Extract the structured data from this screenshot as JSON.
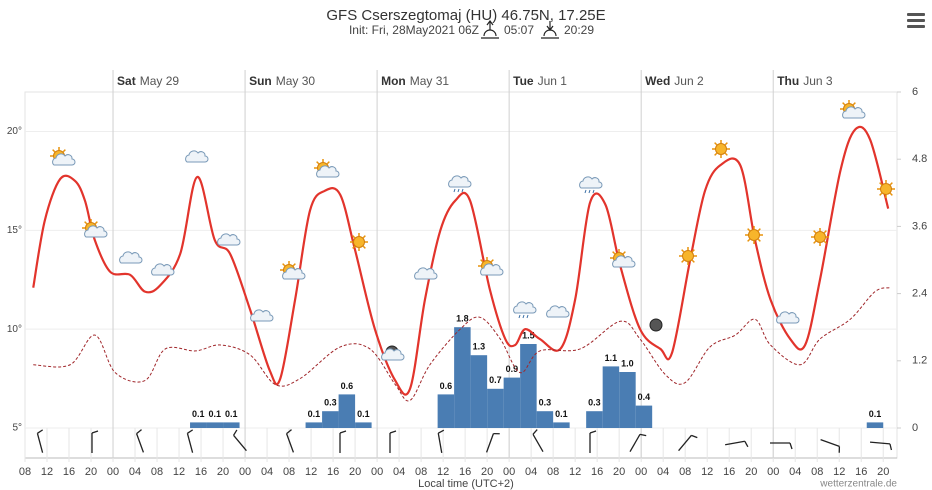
{
  "chart_data": {
    "type": "line",
    "title": "GFS Cserszegtomaj (HU) 46.75N, 17.25E",
    "subtitle": "Init: Fri, 28May2021 06Z",
    "sunrise": "05:07",
    "sunset": "20:29",
    "x_axis_label": "Local time (UTC+2)",
    "credit": "wetterzentrale.de",
    "xlim": [
      0,
      158.5
    ],
    "xticks": [
      {
        "value": 0,
        "label": "08"
      },
      {
        "value": 4,
        "label": "12"
      },
      {
        "value": 8,
        "label": "16"
      },
      {
        "value": 12,
        "label": "20"
      },
      {
        "value": 16,
        "label": "00"
      },
      {
        "value": 20,
        "label": "04"
      },
      {
        "value": 24,
        "label": "08"
      },
      {
        "value": 28,
        "label": "12"
      },
      {
        "value": 32,
        "label": "16"
      },
      {
        "value": 36,
        "label": "20"
      },
      {
        "value": 40,
        "label": "00"
      },
      {
        "value": 44,
        "label": "04"
      },
      {
        "value": 48,
        "label": "08"
      },
      {
        "value": 52,
        "label": "12"
      },
      {
        "value": 56,
        "label": "16"
      },
      {
        "value": 60,
        "label": "20"
      },
      {
        "value": 64,
        "label": "00"
      },
      {
        "value": 68,
        "label": "04"
      },
      {
        "value": 72,
        "label": "08"
      },
      {
        "value": 76,
        "label": "12"
      },
      {
        "value": 80,
        "label": "16"
      },
      {
        "value": 84,
        "label": "20"
      },
      {
        "value": 88,
        "label": "00"
      },
      {
        "value": 92,
        "label": "04"
      },
      {
        "value": 96,
        "label": "08"
      },
      {
        "value": 100,
        "label": "12"
      },
      {
        "value": 104,
        "label": "16"
      },
      {
        "value": 108,
        "label": "20"
      },
      {
        "value": 112,
        "label": "00"
      },
      {
        "value": 116,
        "label": "04"
      },
      {
        "value": 120,
        "label": "08"
      },
      {
        "value": 124,
        "label": "12"
      },
      {
        "value": 128,
        "label": "16"
      },
      {
        "value": 132,
        "label": "20"
      },
      {
        "value": 136,
        "label": "00"
      },
      {
        "value": 140,
        "label": "04"
      },
      {
        "value": 144,
        "label": "08"
      },
      {
        "value": 148,
        "label": "12"
      },
      {
        "value": 152,
        "label": "16"
      },
      {
        "value": 156,
        "label": "20"
      }
    ],
    "days": [
      {
        "day": "Sat",
        "date": "May 29",
        "x": 16
      },
      {
        "day": "Sun",
        "date": "May 30",
        "x": 40
      },
      {
        "day": "Mon",
        "date": "May 31",
        "x": 64
      },
      {
        "day": "Tue",
        "date": "Jun 1",
        "x": 88
      },
      {
        "day": "Wed",
        "date": "Jun 2",
        "x": 112
      },
      {
        "day": "Thu",
        "date": "Jun 3",
        "x": 136
      }
    ],
    "ylim": [
      5,
      22
    ],
    "yticks": [
      {
        "value": 5,
        "label": "5°"
      },
      {
        "value": 10,
        "label": "10°"
      },
      {
        "value": 15,
        "label": "15°"
      },
      {
        "value": 20,
        "label": "20°"
      }
    ],
    "y2lim": [
      0,
      6
    ],
    "y2ticks": [
      0,
      1.2,
      2.4,
      3.6,
      4.8,
      6
    ],
    "grid": true,
    "series": [
      {
        "type": "line",
        "color": "#e2342c",
        "x": [
          1.5,
          3.6,
          6.4,
          9.1,
          10.9,
          12.7,
          15.5,
          19.1,
          21.8,
          24.5,
          28.2,
          31.3,
          34.5,
          37.3,
          40.9,
          44.5,
          46.4,
          49.1,
          51.8,
          54.5,
          57.3,
          60,
          63.6,
          67.3,
          70,
          72.7,
          75.5,
          78.2,
          80.9,
          84.5,
          87.3,
          89.1,
          90.9,
          93.6,
          97.3,
          100,
          102.7,
          105.5,
          108.2,
          111.8,
          115.5,
          117.6,
          120.9,
          123.6,
          126.4,
          130,
          132.7,
          135.5,
          139.1,
          141.8,
          144.5,
          148.2,
          150.9,
          153.6,
          156.9
        ],
        "values": [
          12.1,
          15.5,
          17.6,
          17.5,
          16.5,
          14.5,
          12.9,
          12.75,
          11.9,
          12.2,
          13.8,
          17.7,
          14.5,
          13.8,
          11,
          7.9,
          7.5,
          11.5,
          16,
          17,
          16.8,
          14,
          10,
          7.4,
          7,
          11.5,
          15,
          16.5,
          16.5,
          12,
          9.5,
          9.2,
          10,
          9.5,
          9,
          11.5,
          16.4,
          16.3,
          13.2,
          10,
          9,
          8.8,
          13.5,
          17,
          18.3,
          18.3,
          14.5,
          11.5,
          9.5,
          9.2,
          12.5,
          18,
          20.1,
          19.6,
          16.1
        ]
      },
      {
        "type": "line",
        "style": "dashed",
        "color": "#a0262a",
        "x": [
          1.5,
          8.2,
          12.7,
          16.4,
          21.8,
          25.5,
          31,
          35.5,
          40.9,
          45.5,
          50,
          57.3,
          62.7,
          67.3,
          70,
          73.6,
          79.1,
          82.7,
          86.4,
          90,
          93.6,
          100.9,
          108.2,
          111.8,
          116.4,
          120,
          124.5,
          129.1,
          132.7,
          135.5,
          140.9,
          144.5,
          150,
          154.5,
          157.3
        ],
        "values": [
          8.2,
          8.2,
          9.7,
          7.8,
          7.4,
          9,
          8.9,
          9.2,
          8.7,
          7.2,
          7.5,
          9.1,
          9,
          7.2,
          6.4,
          8.2,
          10,
          10.6,
          9.5,
          7.8,
          8.9,
          9,
          10.4,
          9.5,
          7.7,
          7.3,
          9.1,
          9.7,
          10.5,
          9.2,
          8.2,
          9.5,
          10.5,
          11.9,
          12.1
        ]
      },
      {
        "type": "bar",
        "axis": "y2",
        "color": "#4a7db3",
        "width": 3,
        "x": [
          31.5,
          34.5,
          37.5,
          52.5,
          55.5,
          58.5,
          61.5,
          76.5,
          79.5,
          82.5,
          85.5,
          88.5,
          91.5,
          94.5,
          97.5,
          103.5,
          106.5,
          109.5,
          112.5,
          154.5
        ],
        "values": [
          0.1,
          0.1,
          0.1,
          0.1,
          0.3,
          0.6,
          0.1,
          0.6,
          1.8,
          1.3,
          0.7,
          0.9,
          1.5,
          0.3,
          0.1,
          0.3,
          1.1,
          1,
          0.4,
          0.1
        ],
        "value_labels": [
          "0.1",
          "0.1",
          "0.1",
          "0.1",
          "0.3",
          "0.6",
          "0.1",
          "0.6",
          "1.8",
          "1.3",
          "0.7",
          "0.9",
          "1.5",
          "0.3",
          "0.1",
          "0.3",
          "1.1",
          "1.0",
          "0.4",
          "0.1"
        ]
      }
    ]
  }
}
